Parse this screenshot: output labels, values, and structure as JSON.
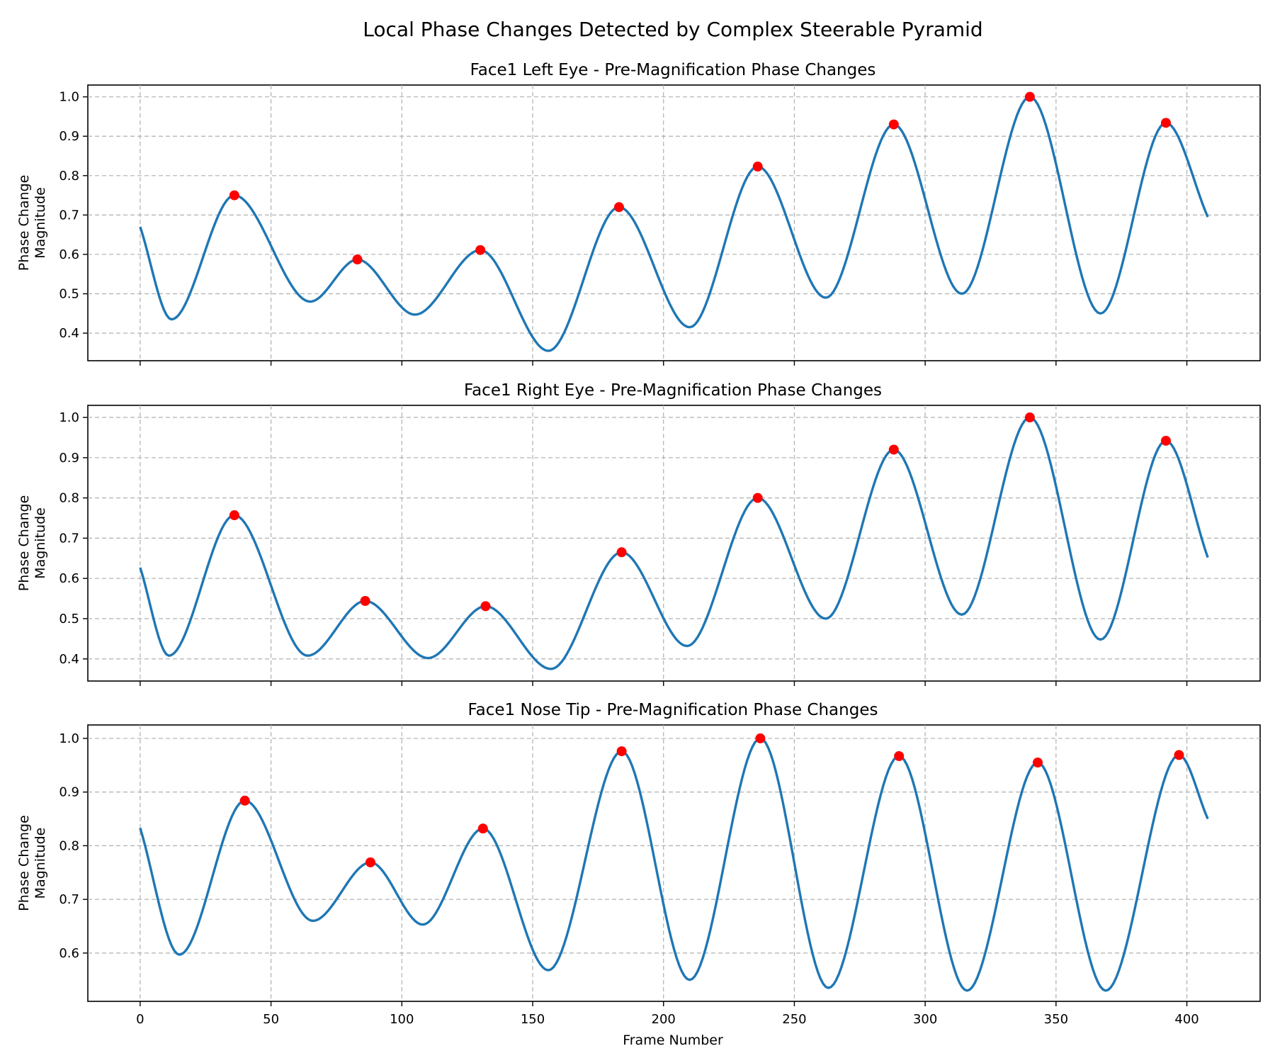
{
  "colors": {
    "line": "#1f77b4",
    "peak": "#ff0000",
    "grid": "#b0b0b0",
    "axis": "#000000"
  },
  "chart_data": {
    "type": "line",
    "suptitle": "Local Phase Changes Detected by Complex Steerable Pyramid",
    "xlabel": "Frame Number",
    "xlim": [
      -20,
      428
    ],
    "x_ticks": [
      0,
      50,
      100,
      150,
      200,
      250,
      300,
      350,
      400
    ],
    "x_range": [
      0,
      408
    ],
    "grid": true,
    "panels": [
      {
        "title": "Face1 Left Eye - Pre-Magnification Phase Changes",
        "ylabel": "Phase Change\nMagnitude",
        "ylim": [
          0.33,
          1.03
        ],
        "y_ticks": [
          0.4,
          0.5,
          0.6,
          0.7,
          0.8,
          0.9,
          1.0
        ],
        "y_tick_labels": [
          "0.4",
          "0.5",
          "0.6",
          "0.7",
          "0.8",
          "0.9",
          "1.0"
        ],
        "series": [
          {
            "name": "phase change",
            "x": [
              0,
              12,
              36,
              65,
              83,
              105,
              130,
              156,
              183,
              210,
              236,
              262,
              288,
              314,
              340,
              367,
              392,
              408
            ],
            "values": [
              0.67,
              0.435,
              0.75,
              0.48,
              0.587,
              0.447,
              0.611,
              0.355,
              0.72,
              0.415,
              0.823,
              0.49,
              0.93,
              0.5,
              1.0,
              0.45,
              0.934,
              0.695
            ]
          }
        ],
        "peaks": {
          "x": [
            36,
            83,
            130,
            183,
            236,
            288,
            340,
            392
          ],
          "y": [
            0.75,
            0.587,
            0.611,
            0.72,
            0.823,
            0.93,
            1.0,
            0.934
          ]
        }
      },
      {
        "title": "Face1 Right Eye - Pre-Magnification Phase Changes",
        "ylabel": "Phase Change\nMagnitude",
        "ylim": [
          0.345,
          1.03
        ],
        "y_ticks": [
          0.4,
          0.5,
          0.6,
          0.7,
          0.8,
          0.9,
          1.0
        ],
        "y_tick_labels": [
          "0.4",
          "0.5",
          "0.6",
          "0.7",
          "0.8",
          "0.9",
          "1.0"
        ],
        "series": [
          {
            "name": "phase change",
            "x": [
              0,
              11,
              36,
              64,
              86,
              110,
              132,
              157,
              184,
              209,
              236,
              262,
              288,
              314,
              340,
              367,
              392,
              408
            ],
            "values": [
              0.627,
              0.408,
              0.757,
              0.408,
              0.544,
              0.402,
              0.531,
              0.375,
              0.665,
              0.432,
              0.8,
              0.5,
              0.92,
              0.51,
              1.0,
              0.448,
              0.942,
              0.652
            ]
          }
        ],
        "peaks": {
          "x": [
            36,
            86,
            132,
            184,
            236,
            288,
            340,
            392
          ],
          "y": [
            0.757,
            0.544,
            0.531,
            0.665,
            0.8,
            0.92,
            1.0,
            0.942
          ]
        }
      },
      {
        "title": "Face1 Nose Tip - Pre-Magnification Phase Changes",
        "ylabel": "Phase Change\nMagnitude",
        "ylim": [
          0.51,
          1.025
        ],
        "y_ticks": [
          0.6,
          0.7,
          0.8,
          0.9,
          1.0
        ],
        "y_tick_labels": [
          "0.6",
          "0.7",
          "0.8",
          "0.9",
          "1.0"
        ],
        "series": [
          {
            "name": "phase change",
            "x": [
              0,
              15,
              40,
              66,
              88,
              108,
              131,
              156,
              184,
              210,
              237,
              263,
              290,
              316,
              343,
              369,
              397,
              408
            ],
            "values": [
              0.833,
              0.597,
              0.884,
              0.66,
              0.769,
              0.653,
              0.832,
              0.568,
              0.976,
              0.55,
              1.0,
              0.535,
              0.967,
              0.53,
              0.955,
              0.53,
              0.969,
              0.85
            ]
          }
        ],
        "peaks": {
          "x": [
            40,
            88,
            131,
            184,
            237,
            290,
            343,
            397
          ],
          "y": [
            0.884,
            0.769,
            0.832,
            0.976,
            1.0,
            0.967,
            0.955,
            0.969
          ]
        }
      }
    ]
  }
}
